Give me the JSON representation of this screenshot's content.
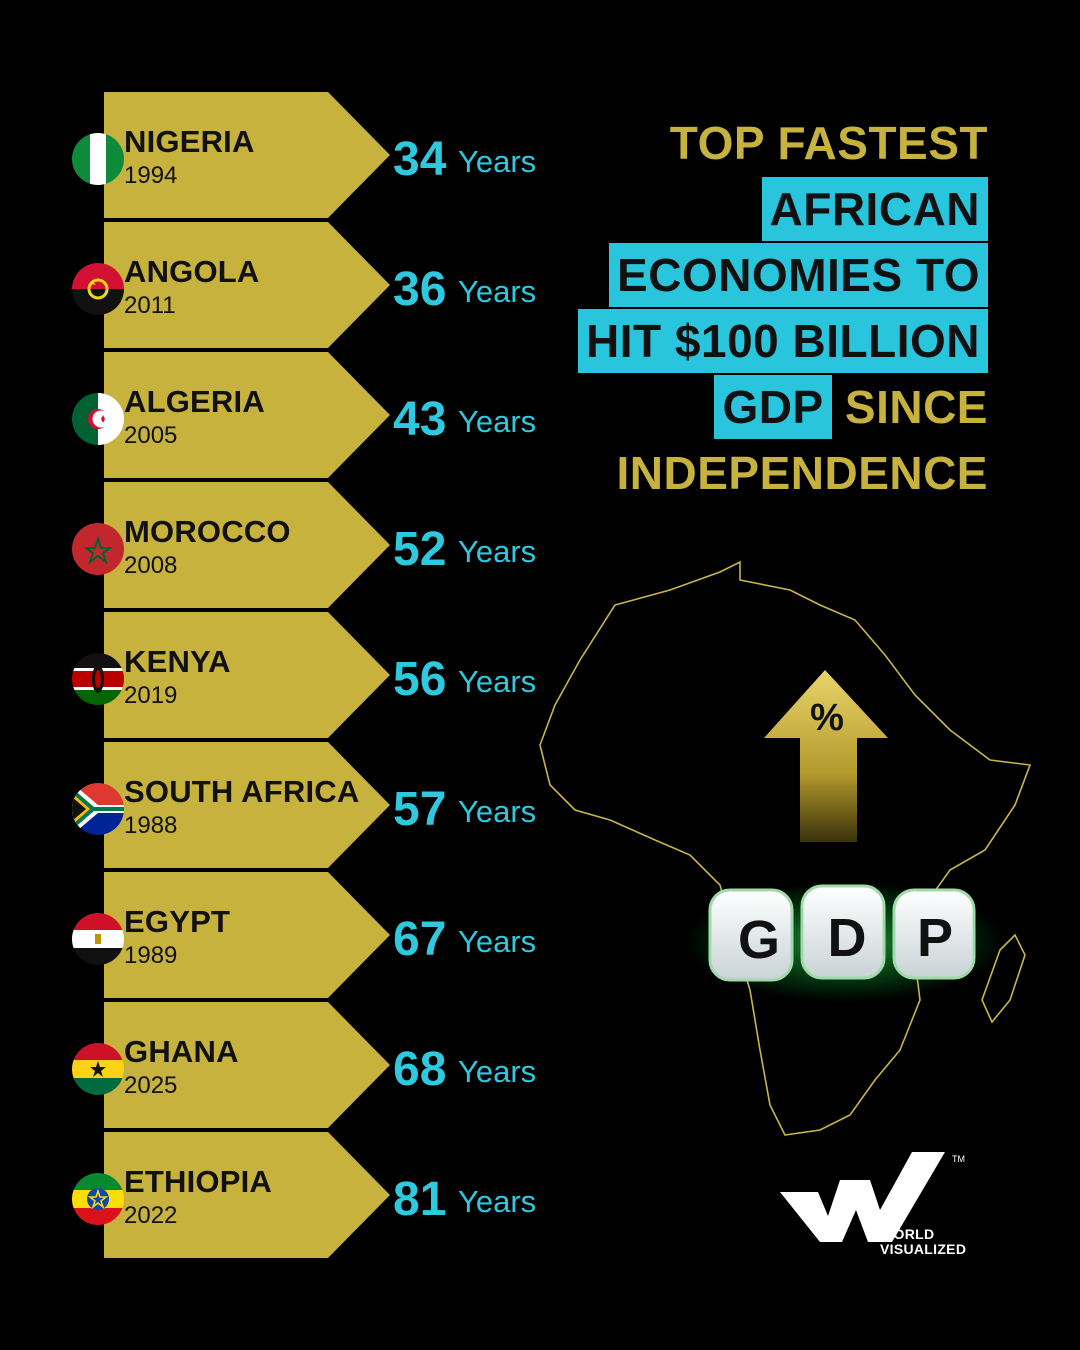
{
  "chart_data": {
    "type": "table",
    "title": "TOP FASTEST AFRICAN ECONOMIES TO HIT $100 BILLION GDP SINCE INDEPENDENCE",
    "unit": "Years",
    "rows": [
      {
        "country": "NIGERIA",
        "year": "1994",
        "value": 34
      },
      {
        "country": "ANGOLA",
        "year": "2011",
        "value": 36
      },
      {
        "country": "ALGERIA",
        "year": "2005",
        "value": 43
      },
      {
        "country": "MOROCCO",
        "year": "2008",
        "value": 52
      },
      {
        "country": "KENYA",
        "year": "2019",
        "value": 56
      },
      {
        "country": "SOUTH AFRICA",
        "year": "1988",
        "value": 57
      },
      {
        "country": "EGYPT",
        "year": "1989",
        "value": 67
      },
      {
        "country": "GHANA",
        "year": "2025",
        "value": 68
      },
      {
        "country": "ETHIOPIA",
        "year": "2022",
        "value": 81
      }
    ]
  },
  "title": {
    "line1": "TOP FASTEST",
    "line2": "AFRICAN",
    "line3": "ECONOMIES TO",
    "line4": "HIT $100 BILLION",
    "line5a": "GDP",
    "line5b": " SINCE",
    "line6": "INDEPENDENCE"
  },
  "illustration": {
    "arrow_symbol": "%",
    "dice": [
      "G",
      "D",
      "P"
    ]
  },
  "brand": {
    "trademark": "TM",
    "line1": "WORLD",
    "line2": "VISUALIZED"
  },
  "colors": {
    "background": "#000000",
    "tag": "#c6b23d",
    "value": "#2ec9de",
    "highlight": "#29c5dc"
  },
  "icons": {
    "flags": [
      "nigeria-flag-icon",
      "angola-flag-icon",
      "algeria-flag-icon",
      "morocco-flag-icon",
      "kenya-flag-icon",
      "south-africa-flag-icon",
      "egypt-flag-icon",
      "ghana-flag-icon",
      "ethiopia-flag-icon"
    ]
  }
}
